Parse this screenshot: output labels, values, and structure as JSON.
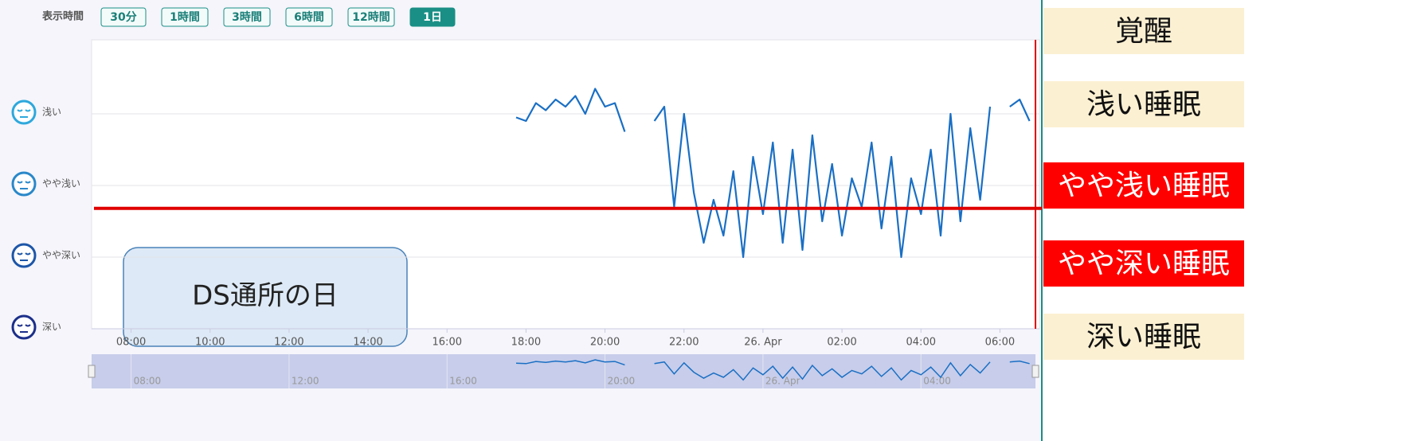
{
  "time_range": {
    "label": "表示時間",
    "options": [
      "30分",
      "1時間",
      "3時間",
      "6時間",
      "12時間",
      "1日"
    ],
    "active": 5
  },
  "chart_data": {
    "type": "line",
    "color": "#1a6fc4",
    "x": [
      17.75,
      18.0,
      18.25,
      18.5,
      18.75,
      19.0,
      19.25,
      19.5,
      19.75,
      20.0,
      20.25,
      20.5,
      21.0,
      21.25,
      21.5,
      21.75,
      22.0,
      22.25,
      22.5,
      22.75,
      23.0,
      23.25,
      23.5,
      23.75,
      24.0,
      24.25,
      24.5,
      24.75,
      25.0,
      25.25,
      25.5,
      25.75,
      26.0,
      26.25,
      26.5,
      26.75,
      27.0,
      27.25,
      27.5,
      27.75,
      28.0,
      28.25,
      28.5,
      28.75,
      29.0,
      29.25,
      29.5,
      29.75,
      30.0,
      30.25,
      30.5,
      30.75
    ],
    "values": [
      2.95,
      2.9,
      3.15,
      3.05,
      3.2,
      3.1,
      3.25,
      3.0,
      3.35,
      3.1,
      3.15,
      2.75,
      null,
      2.9,
      3.1,
      1.7,
      3.0,
      1.9,
      1.2,
      1.8,
      1.3,
      2.2,
      1.0,
      2.4,
      1.6,
      2.6,
      1.2,
      2.5,
      1.1,
      2.7,
      1.5,
      2.3,
      1.3,
      2.1,
      1.7,
      2.6,
      1.4,
      2.4,
      1.0,
      2.1,
      1.6,
      2.5,
      1.3,
      3.0,
      1.5,
      2.8,
      1.8,
      3.1,
      null,
      3.1,
      3.2,
      2.9
    ],
    "xlim": [
      7,
      31
    ],
    "ylim": [
      0,
      4
    ],
    "xticks": [
      {
        "value": 8,
        "label": "08:00"
      },
      {
        "value": 10,
        "label": "10:00"
      },
      {
        "value": 12,
        "label": "12:00"
      },
      {
        "value": 14,
        "label": "14:00"
      },
      {
        "value": 16,
        "label": "16:00"
      },
      {
        "value": 18,
        "label": "18:00"
      },
      {
        "value": 20,
        "label": "20:00"
      },
      {
        "value": 22,
        "label": "22:00"
      },
      {
        "value": 24,
        "label": "26. Apr"
      },
      {
        "value": 26,
        "label": "02:00"
      },
      {
        "value": 28,
        "label": "04:00"
      },
      {
        "value": 30,
        "label": "06:00"
      }
    ],
    "yticks": [
      {
        "value": 3,
        "label": "浅い"
      },
      {
        "value": 2,
        "label": "やや浅い"
      },
      {
        "value": 1,
        "label": "やや深い"
      },
      {
        "value": 0,
        "label": "深い"
      }
    ],
    "navigator_xticks": [
      {
        "value": 8,
        "label": "08:00"
      },
      {
        "value": 12,
        "label": "12:00"
      },
      {
        "value": 16,
        "label": "16:00"
      },
      {
        "value": 20,
        "label": "20:00"
      },
      {
        "value": 24,
        "label": "26. Apr"
      },
      {
        "value": 28,
        "label": "04:00"
      }
    ],
    "threshold": 1.68,
    "now_marker": 30.9,
    "grid": true,
    "annotation": "DS通所の日"
  },
  "side_labels": [
    {
      "text": "覚醒",
      "highlight": false
    },
    {
      "text": "浅い睡眠",
      "highlight": false
    },
    {
      "text": "やや浅い睡眠",
      "highlight": true
    },
    {
      "text": "やや深い睡眠",
      "highlight": true
    },
    {
      "text": "深い睡眠",
      "highlight": false
    }
  ]
}
